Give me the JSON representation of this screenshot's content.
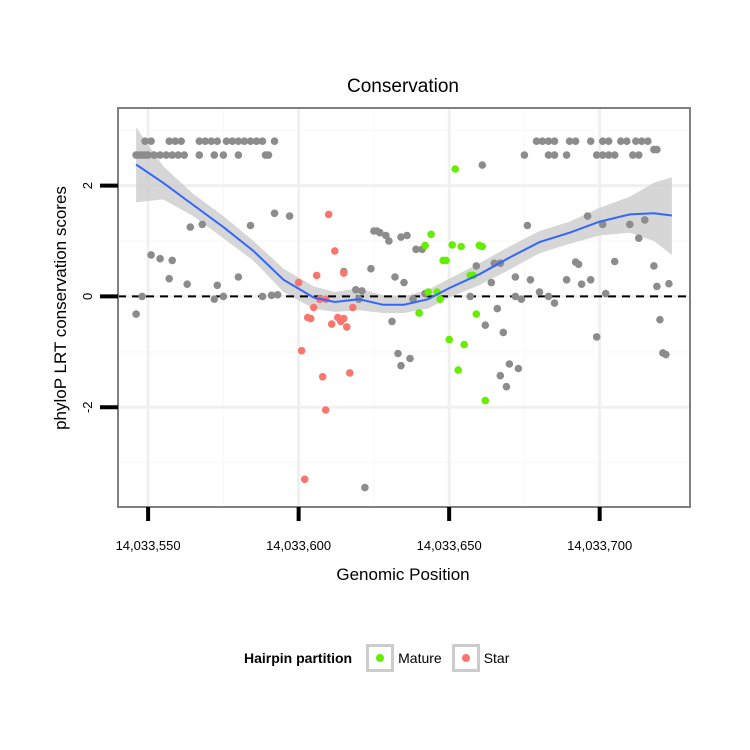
{
  "chart_data": {
    "type": "scatter",
    "title": "Conservation",
    "xlabel": "Genomic Position",
    "ylabel": "phyloP LRT conservation scores",
    "xlim": [
      14033540,
      14033730
    ],
    "ylim": [
      -3.8,
      3.4
    ],
    "x_ticks": [
      14033550,
      14033600,
      14033650,
      14033700
    ],
    "x_tick_labels": [
      "14,033,550",
      "14,033,600",
      "14,033,650",
      "14,033,700"
    ],
    "y_ticks": [
      -2,
      0,
      2
    ],
    "y_tick_labels": [
      "-2",
      "0",
      "2"
    ],
    "reference_line": 0,
    "colors": {
      "other": "#8c8c8c",
      "Mature": "#66ee00",
      "Star": "#f8766d",
      "smooth": "#3366ff",
      "ribbon": "#cccccc"
    },
    "legend": {
      "title": "Hairpin partition",
      "entries": [
        "Mature",
        "Star"
      ],
      "position": "bottom"
    },
    "series": [
      {
        "name": "Other",
        "points": [
          [
            14033546,
            2.55
          ],
          [
            14033547,
            2.55
          ],
          [
            14033548,
            2.55
          ],
          [
            14033549,
            2.55
          ],
          [
            14033550,
            2.55
          ],
          [
            14033552,
            2.55
          ],
          [
            14033554,
            2.55
          ],
          [
            14033556,
            2.55
          ],
          [
            14033558,
            2.55
          ],
          [
            14033560,
            2.55
          ],
          [
            14033562,
            2.55
          ],
          [
            14033567,
            2.55
          ],
          [
            14033572,
            2.55
          ],
          [
            14033575,
            2.55
          ],
          [
            14033580,
            2.55
          ],
          [
            14033589,
            2.55
          ],
          [
            14033590,
            2.55
          ],
          [
            14033549,
            2.8
          ],
          [
            14033551,
            2.8
          ],
          [
            14033557,
            2.8
          ],
          [
            14033559,
            2.8
          ],
          [
            14033561,
            2.8
          ],
          [
            14033567,
            2.8
          ],
          [
            14033569,
            2.8
          ],
          [
            14033571,
            2.8
          ],
          [
            14033573,
            2.8
          ],
          [
            14033576,
            2.8
          ],
          [
            14033578,
            2.8
          ],
          [
            14033580,
            2.8
          ],
          [
            14033582,
            2.8
          ],
          [
            14033584,
            2.8
          ],
          [
            14033586,
            2.8
          ],
          [
            14033588,
            2.8
          ],
          [
            14033592,
            2.8
          ],
          [
            14033679,
            2.8
          ],
          [
            14033681,
            2.8
          ],
          [
            14033683,
            2.8
          ],
          [
            14033685,
            2.8
          ],
          [
            14033690,
            2.8
          ],
          [
            14033692,
            2.8
          ],
          [
            14033697,
            2.8
          ],
          [
            14033701,
            2.8
          ],
          [
            14033703,
            2.8
          ],
          [
            14033707,
            2.8
          ],
          [
            14033709,
            2.8
          ],
          [
            14033712,
            2.8
          ],
          [
            14033714,
            2.8
          ],
          [
            14033716,
            2.8
          ],
          [
            14033675,
            2.55
          ],
          [
            14033683,
            2.55
          ],
          [
            14033685,
            2.55
          ],
          [
            14033689,
            2.55
          ],
          [
            14033699,
            2.55
          ],
          [
            14033701,
            2.55
          ],
          [
            14033703,
            2.55
          ],
          [
            14033705,
            2.55
          ],
          [
            14033711,
            2.55
          ],
          [
            14033713,
            2.55
          ],
          [
            14033718,
            2.65
          ],
          [
            14033719,
            2.65
          ],
          [
            14033661,
            2.37
          ],
          [
            14033546,
            -0.32
          ],
          [
            14033548,
            0.0
          ],
          [
            14033551,
            0.75
          ],
          [
            14033554,
            0.68
          ],
          [
            14033557,
            0.32
          ],
          [
            14033558,
            0.65
          ],
          [
            14033563,
            0.22
          ],
          [
            14033564,
            1.25
          ],
          [
            14033568,
            1.3
          ],
          [
            14033572,
            -0.05
          ],
          [
            14033573,
            0.2
          ],
          [
            14033575,
            0.0
          ],
          [
            14033580,
            0.35
          ],
          [
            14033584,
            1.28
          ],
          [
            14033588,
            0.0
          ],
          [
            14033591,
            0.02
          ],
          [
            14033593,
            0.03
          ],
          [
            14033592,
            1.5
          ],
          [
            14033597,
            1.45
          ],
          [
            14033615,
            0.45
          ],
          [
            14033619,
            0.12
          ],
          [
            14033620,
            -0.05
          ],
          [
            14033621,
            0.1
          ],
          [
            14033622,
            -3.45
          ],
          [
            14033624,
            0.5
          ],
          [
            14033625,
            1.18
          ],
          [
            14033626,
            1.18
          ],
          [
            14033627,
            1.15
          ],
          [
            14033629,
            1.1
          ],
          [
            14033630,
            1.0
          ],
          [
            14033631,
            -0.45
          ],
          [
            14033632,
            0.35
          ],
          [
            14033633,
            -1.03
          ],
          [
            14033634,
            -1.25
          ],
          [
            14033634,
            1.07
          ],
          [
            14033635,
            0.25
          ],
          [
            14033636,
            1.1
          ],
          [
            14033637,
            -1.12
          ],
          [
            14033638,
            -0.05
          ],
          [
            14033639,
            0.85
          ],
          [
            14033640,
            -0.3
          ],
          [
            14033641,
            0.85
          ],
          [
            14033642,
            0.05
          ],
          [
            14033657,
            0.0
          ],
          [
            14033659,
            0.55
          ],
          [
            14033662,
            -0.52
          ],
          [
            14033664,
            0.25
          ],
          [
            14033665,
            0.6
          ],
          [
            14033666,
            -0.22
          ],
          [
            14033667,
            0.6
          ],
          [
            14033667,
            -1.43
          ],
          [
            14033668,
            -0.65
          ],
          [
            14033669,
            -1.63
          ],
          [
            14033670,
            -1.22
          ],
          [
            14033672,
            0.35
          ],
          [
            14033672,
            0.0
          ],
          [
            14033674,
            -0.05
          ],
          [
            14033673,
            -1.3
          ],
          [
            14033676,
            1.28
          ],
          [
            14033677,
            0.3
          ],
          [
            14033680,
            0.08
          ],
          [
            14033683,
            0.0
          ],
          [
            14033685,
            -0.12
          ],
          [
            14033689,
            0.3
          ],
          [
            14033692,
            0.62
          ],
          [
            14033693,
            0.58
          ],
          [
            14033694,
            0.22
          ],
          [
            14033696,
            1.45
          ],
          [
            14033697,
            0.3
          ],
          [
            14033699,
            -0.73
          ],
          [
            14033701,
            1.3
          ],
          [
            14033702,
            0.05
          ],
          [
            14033705,
            0.63
          ],
          [
            14033710,
            1.3
          ],
          [
            14033713,
            1.05
          ],
          [
            14033715,
            1.38
          ],
          [
            14033718,
            0.55
          ],
          [
            14033719,
            0.18
          ],
          [
            14033720,
            -0.42
          ],
          [
            14033721,
            -1.02
          ],
          [
            14033722,
            -1.05
          ],
          [
            14033723,
            0.23
          ]
        ]
      },
      {
        "name": "Mature",
        "points": [
          [
            14033640,
            -0.3
          ],
          [
            14033642,
            0.92
          ],
          [
            14033643,
            0.08
          ],
          [
            14033644,
            1.12
          ],
          [
            14033646,
            0.08
          ],
          [
            14033647,
            -0.05
          ],
          [
            14033648,
            0.65
          ],
          [
            14033649,
            0.65
          ],
          [
            14033650,
            -0.78
          ],
          [
            14033651,
            0.93
          ],
          [
            14033652,
            2.3
          ],
          [
            14033653,
            -1.33
          ],
          [
            14033654,
            0.9
          ],
          [
            14033655,
            -0.87
          ],
          [
            14033657,
            0.38
          ],
          [
            14033658,
            0.38
          ],
          [
            14033659,
            -0.32
          ],
          [
            14033660,
            0.92
          ],
          [
            14033661,
            0.9
          ],
          [
            14033662,
            -1.88
          ]
        ]
      },
      {
        "name": "Star",
        "points": [
          [
            14033600,
            0.25
          ],
          [
            14033601,
            -0.98
          ],
          [
            14033602,
            -3.3
          ],
          [
            14033603,
            -0.38
          ],
          [
            14033604,
            -0.4
          ],
          [
            14033605,
            -0.2
          ],
          [
            14033606,
            0.38
          ],
          [
            14033607,
            -0.05
          ],
          [
            14033608,
            -1.45
          ],
          [
            14033609,
            -0.05
          ],
          [
            14033609,
            -2.05
          ],
          [
            14033610,
            1.48
          ],
          [
            14033611,
            -0.5
          ],
          [
            14033612,
            0.82
          ],
          [
            14033613,
            -0.38
          ],
          [
            14033614,
            -0.45
          ],
          [
            14033615,
            0.42
          ],
          [
            14033615,
            -0.4
          ],
          [
            14033616,
            -0.55
          ],
          [
            14033617,
            -1.38
          ],
          [
            14033618,
            -0.2
          ]
        ]
      }
    ],
    "smooth": {
      "x": [
        14033546,
        14033555,
        14033565,
        14033575,
        14033585,
        14033595,
        14033605,
        14033612,
        14033620,
        14033628,
        14033635,
        14033643,
        14033650,
        14033660,
        14033670,
        14033680,
        14033690,
        14033700,
        14033710,
        14033718,
        14033724
      ],
      "y": [
        2.38,
        2.05,
        1.65,
        1.25,
        0.82,
        0.3,
        -0.02,
        -0.1,
        -0.05,
        -0.15,
        -0.15,
        -0.05,
        0.15,
        0.4,
        0.7,
        0.98,
        1.15,
        1.35,
        1.48,
        1.5,
        1.46
      ],
      "lower": [
        1.7,
        1.75,
        1.45,
        1.05,
        0.64,
        0.08,
        -0.22,
        -0.28,
        -0.25,
        -0.3,
        -0.3,
        -0.22,
        -0.02,
        0.2,
        0.48,
        0.78,
        0.95,
        1.1,
        1.15,
        1.0,
        0.75
      ],
      "upper": [
        3.05,
        2.35,
        1.85,
        1.45,
        1.0,
        0.5,
        0.18,
        0.08,
        0.15,
        0.02,
        0.0,
        0.12,
        0.32,
        0.6,
        0.9,
        1.18,
        1.35,
        1.6,
        1.8,
        2.05,
        2.15
      ]
    }
  }
}
